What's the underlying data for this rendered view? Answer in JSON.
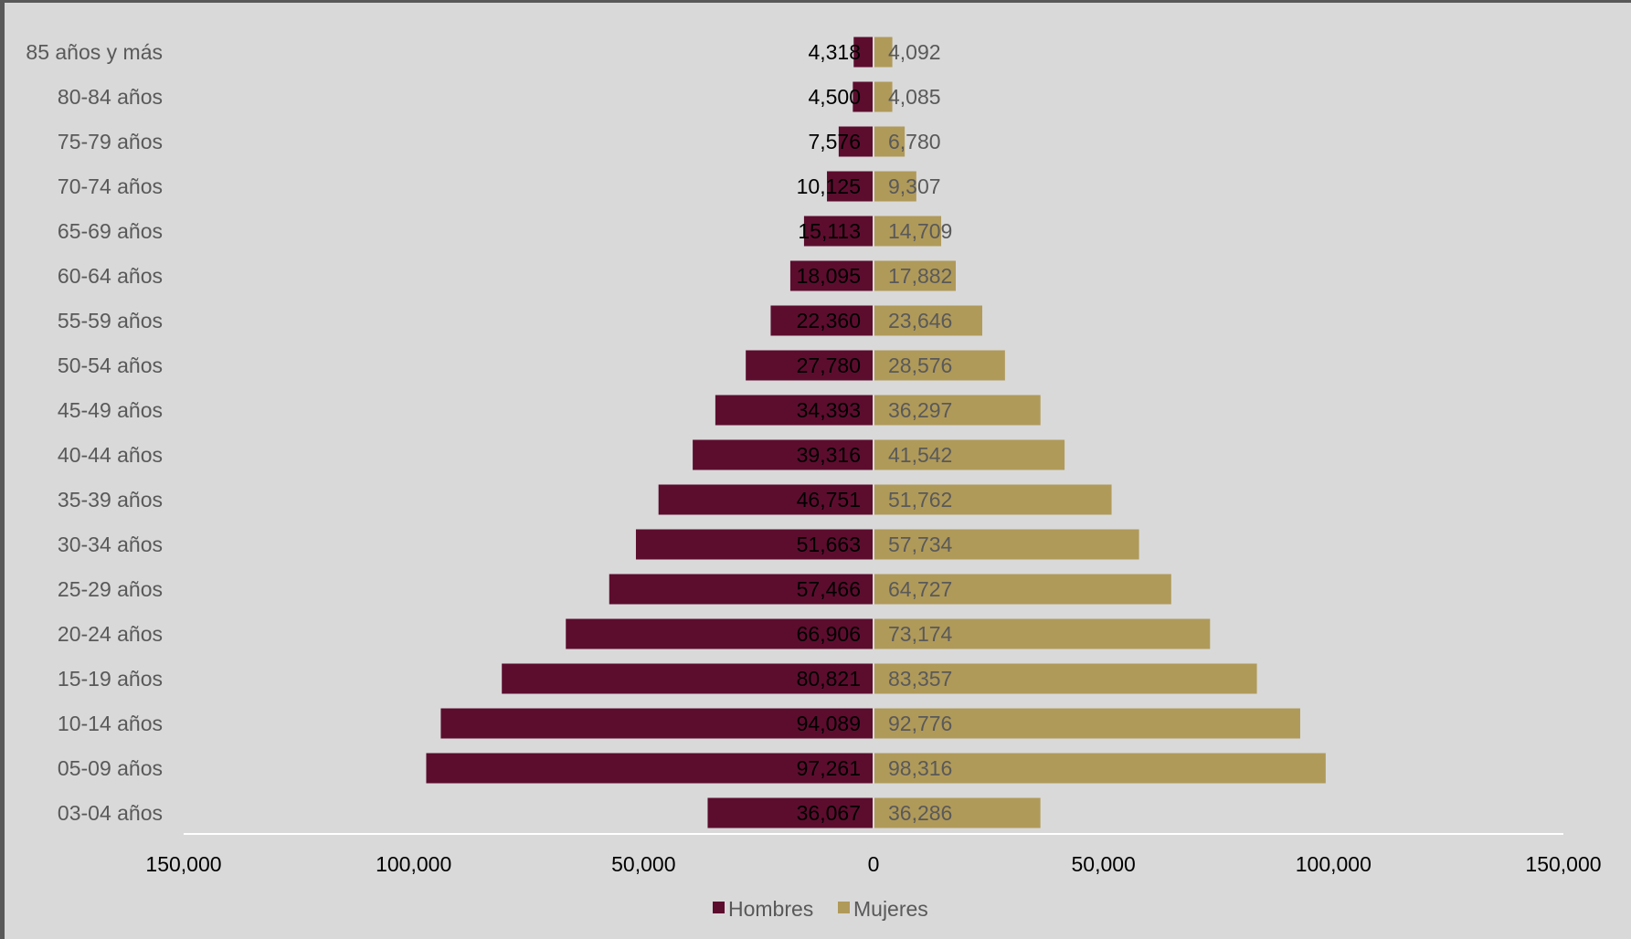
{
  "chart_data": {
    "type": "bar",
    "orientation": "horizontal",
    "layout": "population-pyramid",
    "categories": [
      "85 años y más",
      "80-84 años",
      "75-79 años",
      "70-74 años",
      "65-69 años",
      "60-64 años",
      "55-59 años",
      "50-54 años",
      "45-49 años",
      "40-44 años",
      "35-39 años",
      "30-34 años",
      "25-29 años",
      "20-24 años",
      "15-19 años",
      "10-14 años",
      "05-09 años",
      "03-04 años"
    ],
    "series": [
      {
        "name": "Hombres",
        "color": "#5c0d2e",
        "side": "left",
        "values": [
          4318,
          4500,
          7576,
          10125,
          15113,
          18095,
          22360,
          27780,
          34393,
          39316,
          46751,
          51663,
          57466,
          66906,
          80821,
          94089,
          97261,
          36067
        ],
        "labels": [
          "4,318",
          "4,500",
          "7,576",
          "10,125",
          "15,113",
          "18,095",
          "22,360",
          "27,780",
          "34,393",
          "39,316",
          "46,751",
          "51,663",
          "57,466",
          "66,906",
          "80,821",
          "94,089",
          "97,261",
          "36,067"
        ]
      },
      {
        "name": "Mujeres",
        "color": "#b09a5a",
        "side": "right",
        "values": [
          4092,
          4085,
          6780,
          9307,
          14709,
          17882,
          23646,
          28576,
          36297,
          41542,
          51762,
          57734,
          64727,
          73174,
          83357,
          92776,
          98316,
          36286
        ],
        "labels": [
          "4,092",
          "4,085",
          "6,780",
          "9,307",
          "14,709",
          "17,882",
          "23,646",
          "28,576",
          "36,297",
          "41,542",
          "51,762",
          "57,734",
          "64,727",
          "73,174",
          "83,357",
          "92,776",
          "98,316",
          "36,286"
        ]
      }
    ],
    "xlim": [
      -150000,
      150000
    ],
    "x_ticks": [
      -150000,
      -100000,
      -50000,
      0,
      50000,
      100000,
      150000
    ],
    "x_tick_labels": [
      "150,000",
      "100,000",
      "50,000",
      "0",
      "50,000",
      "100,000",
      "150,000"
    ],
    "title": "",
    "xlabel": "",
    "ylabel": "",
    "grid": false,
    "legend": "bottom-center",
    "legend_entries": [
      "Hombres",
      "Mujeres"
    ]
  }
}
